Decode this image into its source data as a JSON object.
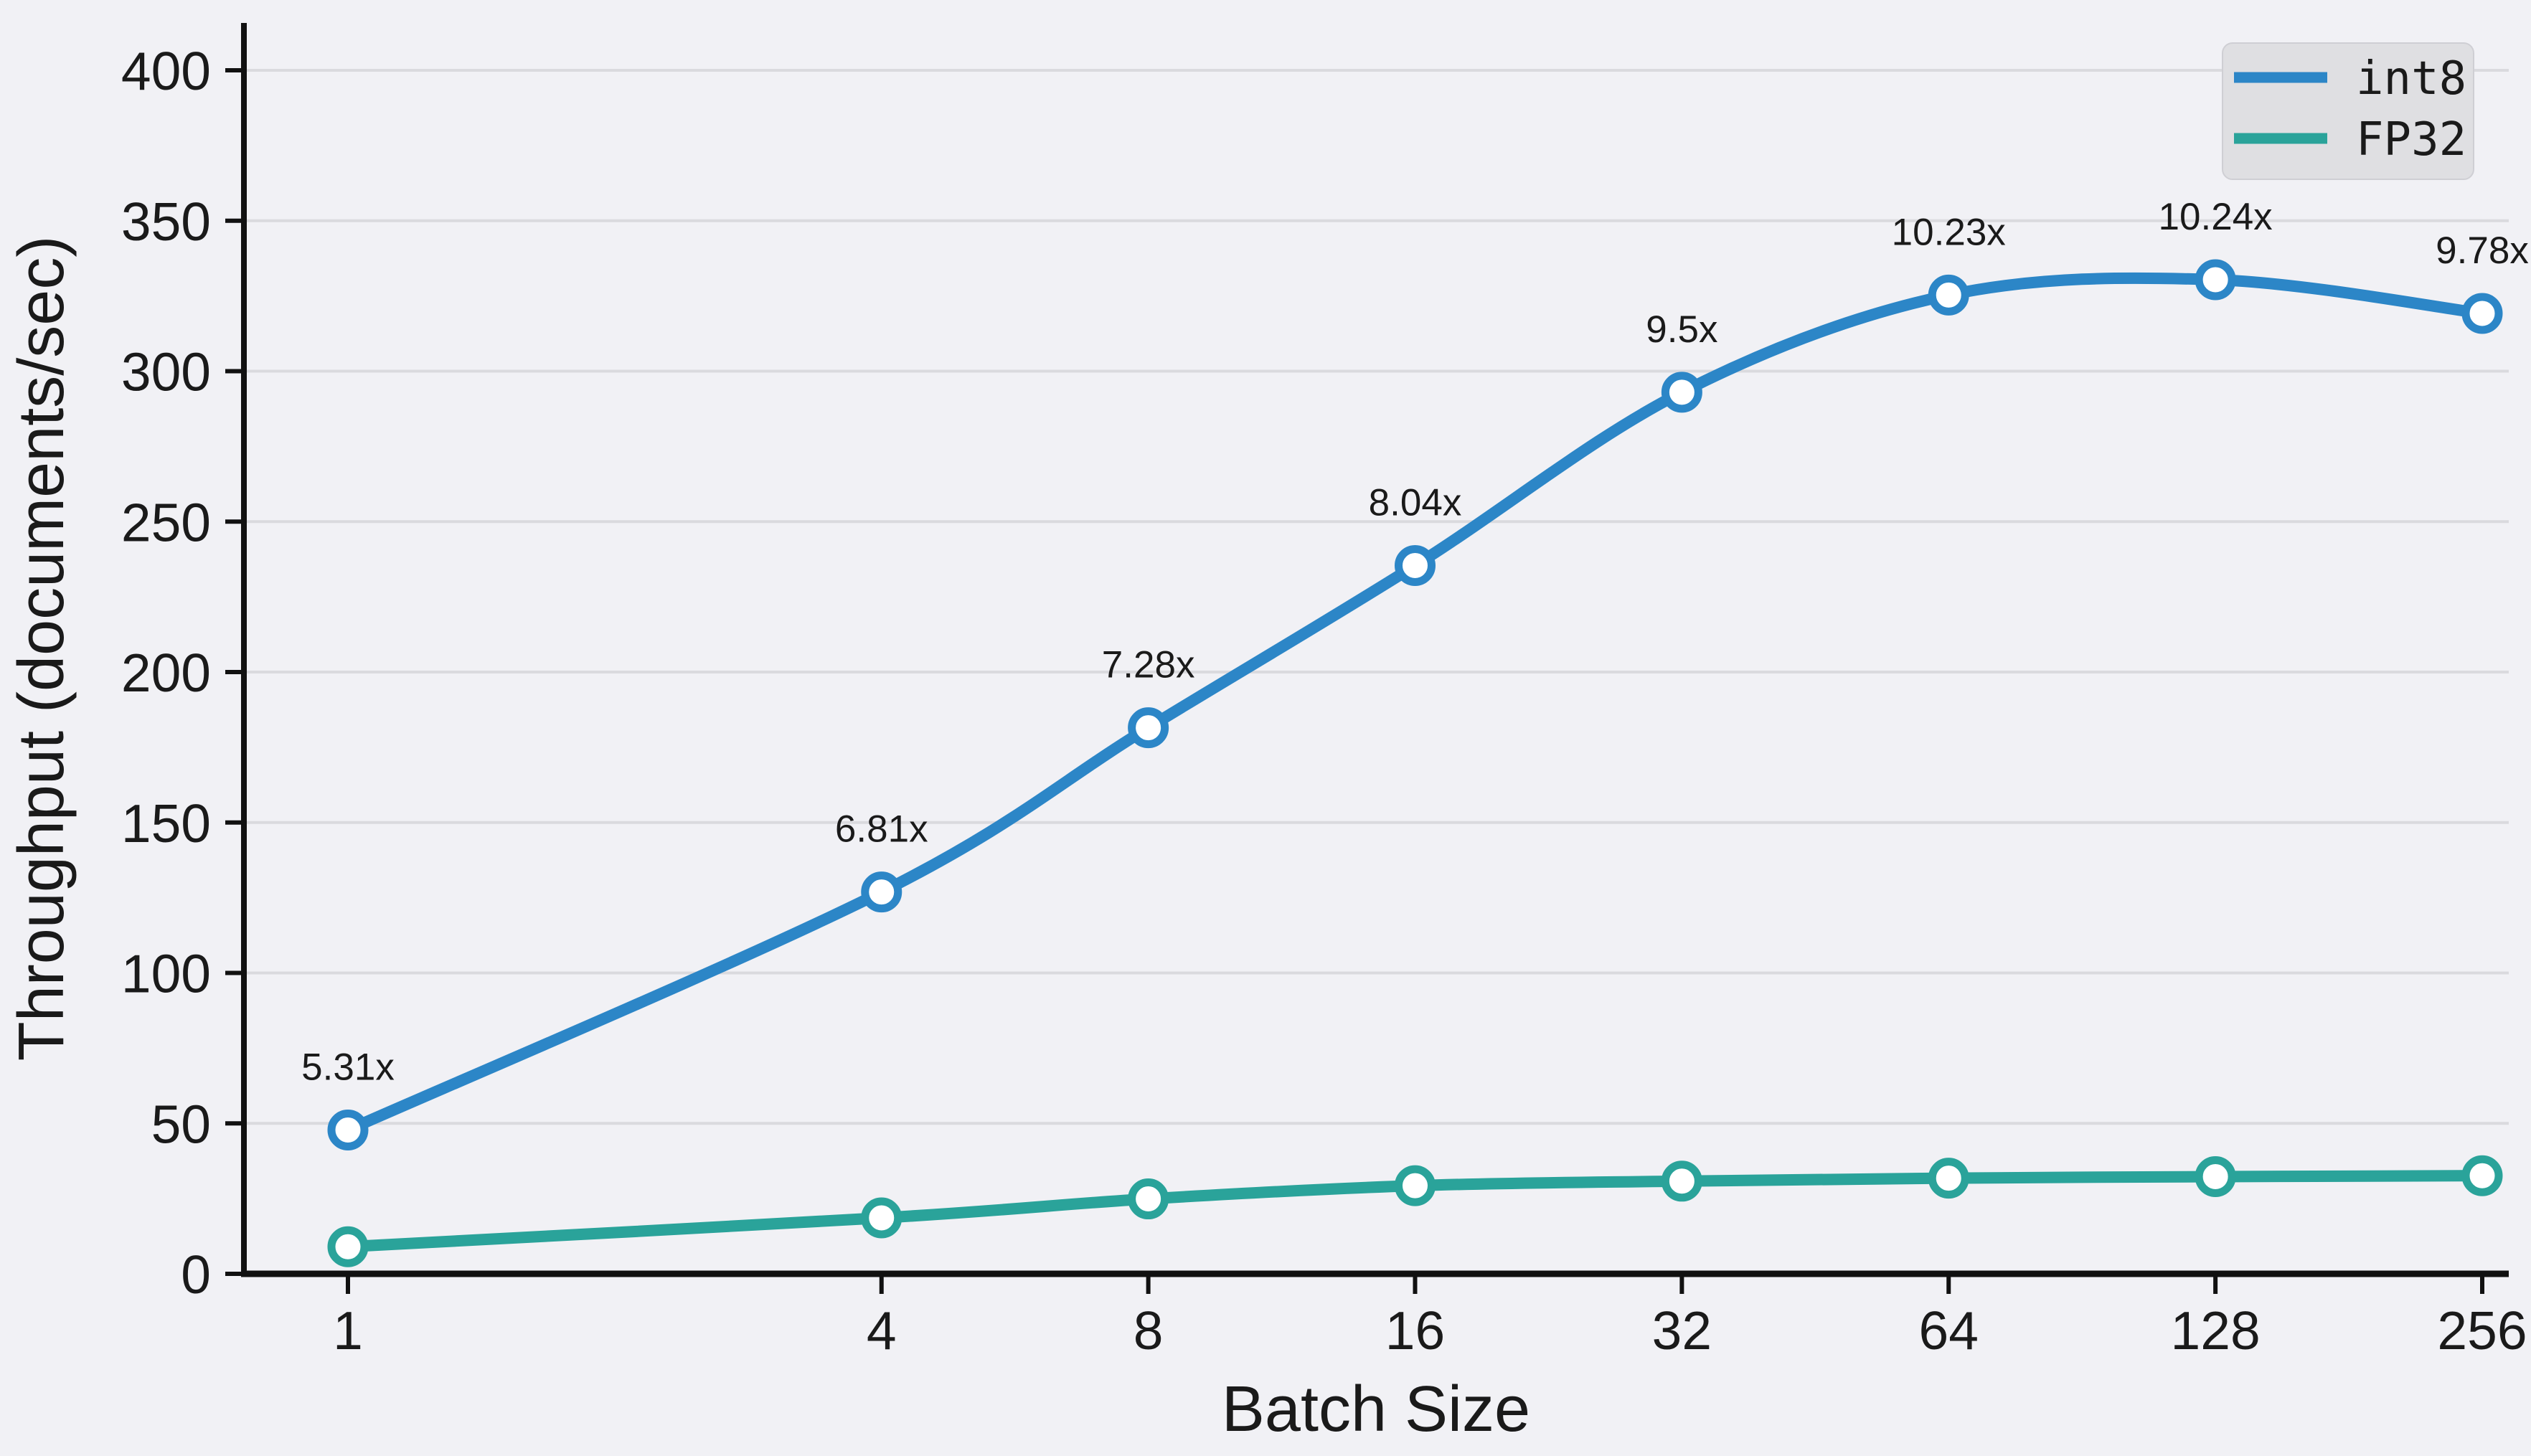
{
  "chart_data": {
    "type": "line",
    "title": "",
    "xlabel": "Batch Size",
    "ylabel": "Throughput (documents/sec)",
    "x_scale": "log2",
    "categories": [
      1,
      4,
      8,
      16,
      32,
      64,
      128,
      256
    ],
    "x_tick_labels": [
      "1",
      "4",
      "8",
      "16",
      "32",
      "64",
      "128",
      "256"
    ],
    "yticks": [
      0,
      50,
      100,
      150,
      200,
      250,
      300,
      350,
      400
    ],
    "ytick_labels": [
      "0",
      "50",
      "100",
      "150",
      "200",
      "250",
      "300",
      "350",
      "400"
    ],
    "ylim": [
      0,
      416
    ],
    "grid": true,
    "legend_position": "upper right",
    "series": [
      {
        "name": "int8",
        "color": "#2c86c7",
        "values": [
          47.8,
          126.9,
          181.5,
          235.4,
          293.0,
          325.3,
          330.4,
          319.2
        ],
        "point_labels": [
          "5.31x",
          "6.81x",
          "7.28x",
          "8.04x",
          "9.5x",
          "10.23x",
          "10.24x",
          "9.78x"
        ]
      },
      {
        "name": "FP32",
        "color": "#2aa39a",
        "values": [
          9.0,
          18.6,
          24.9,
          29.3,
          30.8,
          31.8,
          32.3,
          32.6
        ],
        "point_labels": []
      }
    ],
    "colors": {
      "background": "#f1f1f5",
      "gridline": "#dadade",
      "spine": "#111111",
      "text": "#1a1a1a",
      "legend_background": "#dfdfe2",
      "legend_border": "#cfcfd4",
      "marker_fill": "#ffffff"
    }
  }
}
